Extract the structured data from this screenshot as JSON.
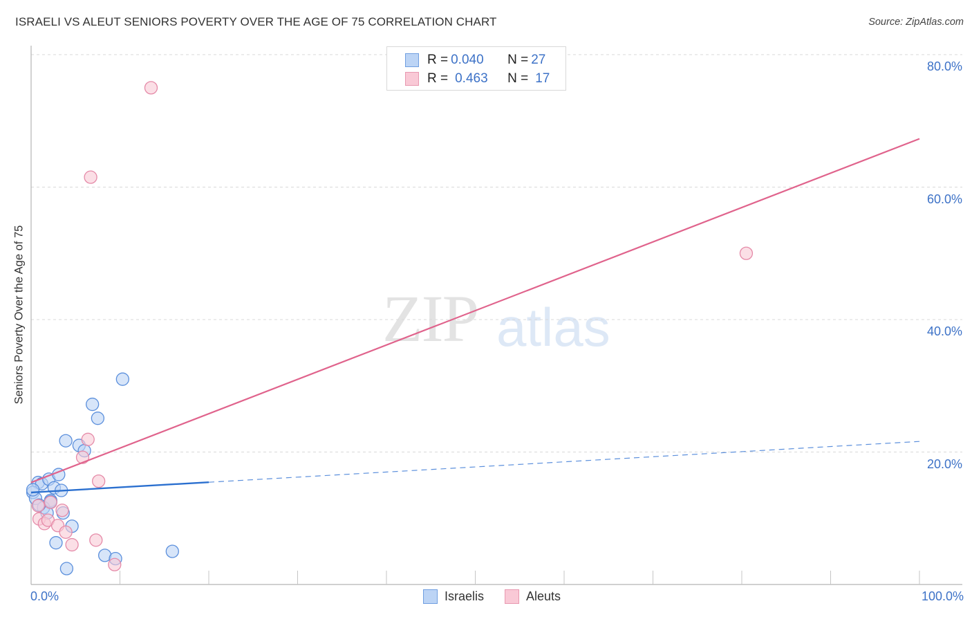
{
  "header": {
    "title": "ISRAELI VS ALEUT SENIORS POVERTY OVER THE AGE OF 75 CORRELATION CHART",
    "source": "Source: ZipAtlas.com"
  },
  "watermark": {
    "zip": "ZIP",
    "atlas": "atlas"
  },
  "legend_top": {
    "rows": [
      {
        "r_label": "R = ",
        "r_value": "0.040",
        "n_label": "N = ",
        "n_value": "27",
        "color": "#bcd4f5"
      },
      {
        "r_label": "R = ",
        "r_value": "0.463",
        "n_label": "N = ",
        "n_value": "17",
        "color": "#f9c9d6"
      }
    ]
  },
  "legend_bottom": {
    "items": [
      {
        "label": "Israelis"
      },
      {
        "label": "Aleuts"
      }
    ]
  },
  "axes": {
    "ylabel": "Seniors Poverty Over the Age of 75",
    "yticks": [
      "80.0%",
      "60.0%",
      "40.0%",
      "20.0%"
    ],
    "xticks": [
      "0.0%",
      "100.0%"
    ]
  },
  "colors": {
    "israelis_fill": "#bcd4f5",
    "israelis_stroke": "#5b8fdc",
    "israelis_line": "#2a6fcf",
    "aleuts_fill": "#f9c9d6",
    "aleuts_stroke": "#e58aa8",
    "aleuts_line": "#e0638c",
    "tick_text": "#3d72c7"
  },
  "chart_data": {
    "type": "scatter",
    "title": "ISRAELI VS ALEUT SENIORS POVERTY OVER THE AGE OF 75 CORRELATION CHART",
    "xlabel": "",
    "ylabel": "Seniors Poverty Over the Age of 75",
    "xlim": [
      0,
      100
    ],
    "ylim": [
      0,
      83
    ],
    "x_tick_labels": [
      "0.0%",
      "100.0%"
    ],
    "y_tick_labels": [
      "20.0%",
      "40.0%",
      "60.0%",
      "80.0%"
    ],
    "grid": "horizontal dashed",
    "legend_position": "top-center and bottom-center",
    "series": [
      {
        "name": "Israelis",
        "R": 0.04,
        "N": 27,
        "trendline": {
          "x": [
            0,
            100
          ],
          "y": [
            13.9,
            21.6
          ],
          "solid_until_x": 20
        },
        "points": [
          [
            0.8,
            15.4
          ],
          [
            0.2,
            13.9
          ],
          [
            0.5,
            13.0
          ],
          [
            1.2,
            15.2
          ],
          [
            2.0,
            15.9
          ],
          [
            3.1,
            16.6
          ],
          [
            3.9,
            21.7
          ],
          [
            5.4,
            21.0
          ],
          [
            6.0,
            20.2
          ],
          [
            6.9,
            27.2
          ],
          [
            7.5,
            25.1
          ],
          [
            10.3,
            31.0
          ],
          [
            2.6,
            14.6
          ],
          [
            3.4,
            14.2
          ],
          [
            2.2,
            12.7
          ],
          [
            1.4,
            11.6
          ],
          [
            1.8,
            10.8
          ],
          [
            3.6,
            10.8
          ],
          [
            4.6,
            8.8
          ],
          [
            2.8,
            6.3
          ],
          [
            4.0,
            2.4
          ],
          [
            8.3,
            4.4
          ],
          [
            9.5,
            3.9
          ],
          [
            15.9,
            5.0
          ],
          [
            0.2,
            14.3
          ],
          [
            0.9,
            12.0
          ],
          [
            2.2,
            12.5
          ]
        ]
      },
      {
        "name": "Aleuts",
        "R": 0.463,
        "N": 17,
        "trendline": {
          "x": [
            0,
            100
          ],
          "y": [
            15.4,
            67.3
          ]
        },
        "points": [
          [
            13.5,
            75.0
          ],
          [
            6.7,
            61.5
          ],
          [
            80.5,
            50.0
          ],
          [
            6.4,
            21.9
          ],
          [
            5.8,
            19.2
          ],
          [
            7.6,
            15.6
          ],
          [
            2.2,
            12.4
          ],
          [
            0.9,
            9.9
          ],
          [
            1.5,
            9.2
          ],
          [
            1.9,
            9.7
          ],
          [
            3.0,
            8.9
          ],
          [
            3.9,
            7.9
          ],
          [
            7.3,
            6.7
          ],
          [
            4.6,
            6.0
          ],
          [
            9.4,
            3.0
          ],
          [
            0.8,
            11.9
          ],
          [
            3.5,
            11.2
          ]
        ]
      }
    ]
  }
}
